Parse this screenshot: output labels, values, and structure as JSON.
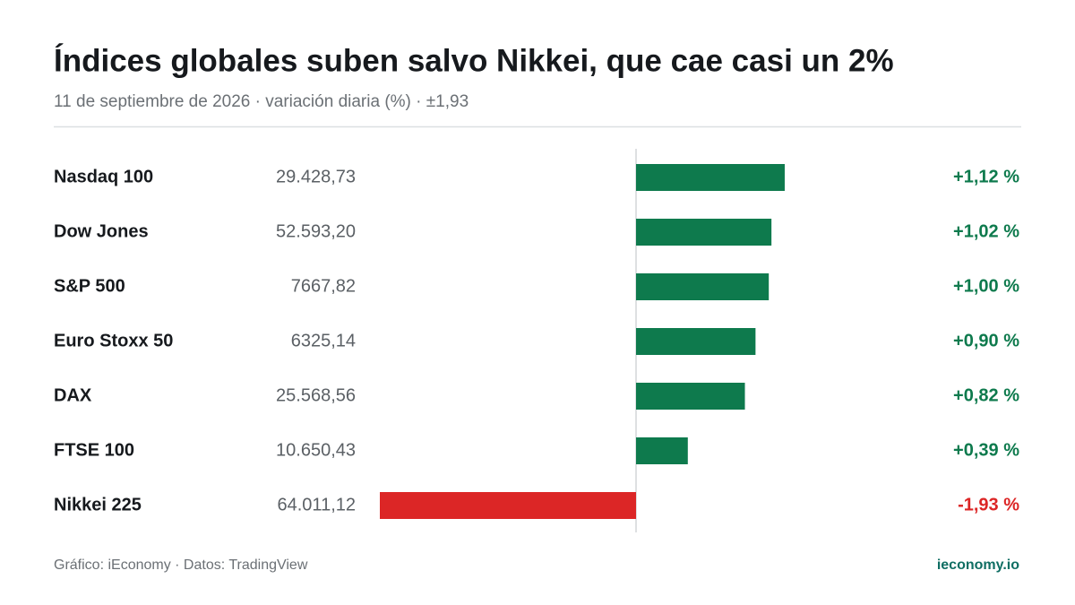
{
  "chart_data": {
    "type": "bar",
    "orientation": "horizontal",
    "title": "Índices globales suben salvo Nikkei, que cae casi un 2%",
    "subtitle": "11 de septiembre de 2026 · variación diaria (%) · ±1,93",
    "categories": [
      "Nasdaq 100",
      "Dow Jones",
      "S&P 500",
      "Euro Stoxx 50",
      "DAX",
      "FTSE 100",
      "Nikkei 225"
    ],
    "levels": [
      "29.428,73",
      "52.593,20",
      "7667,82",
      "6325,14",
      "25.568,56",
      "10.650,43",
      "64.011,12"
    ],
    "values": [
      1.12,
      1.02,
      1.0,
      0.9,
      0.82,
      0.39,
      -1.93
    ],
    "value_labels": [
      "+1,12 %",
      "+1,02 %",
      "+1,00 %",
      "+0,90 %",
      "+0,82 %",
      "+0,39 %",
      "-1,93 %"
    ],
    "xlim": [
      -1.93,
      1.93
    ],
    "positive_color": "#0e7a4d",
    "negative_color": "#dc2626",
    "source": "Gráfico: iEconomy · Datos: TradingView",
    "brand": "ieconomy.io"
  }
}
